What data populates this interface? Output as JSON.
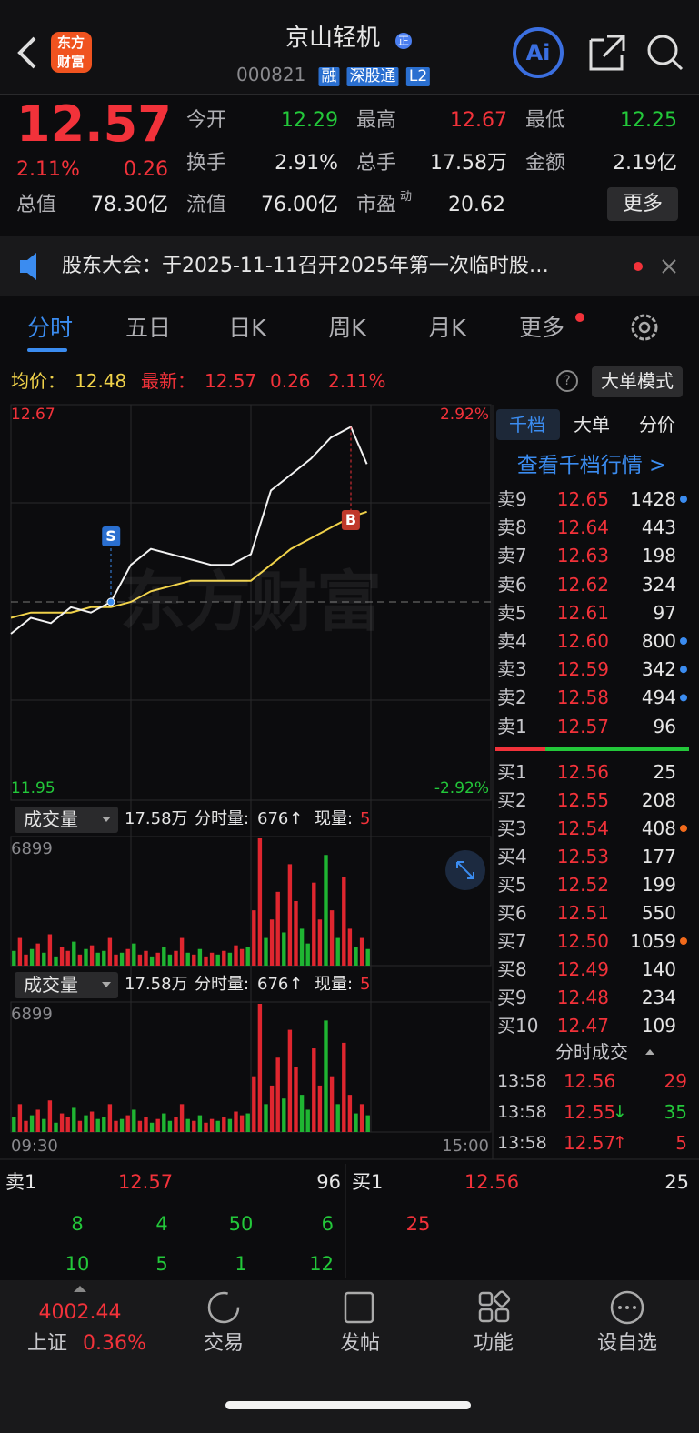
{
  "header": {
    "logo": [
      "东方",
      "财富"
    ],
    "name": "京山轻机",
    "badge": "正",
    "code": "000821",
    "tags": [
      "融",
      "深股通",
      "L2"
    ],
    "ai": "Ai"
  },
  "quote": {
    "price": "12.57",
    "pct": "2.11%",
    "change": "0.26",
    "fields": [
      {
        "label": "今开",
        "value": "12.29",
        "color": "#23c83a"
      },
      {
        "label": "最高",
        "value": "12.67",
        "color": "#f2323a"
      },
      {
        "label": "最低",
        "value": "12.25",
        "color": "#23c83a"
      },
      {
        "label": "换手",
        "value": "2.91%"
      },
      {
        "label": "总手",
        "value": "17.58万"
      },
      {
        "label": "金额",
        "value": "2.19亿"
      },
      {
        "label": "总值",
        "value": "78.30亿"
      },
      {
        "label": "流值",
        "value": "76.00亿"
      },
      {
        "label": "市盈",
        "sup": "动",
        "value": "20.62"
      }
    ],
    "more": "更多"
  },
  "notice": "股东大会：于2025-11-11召开2025年第一次临时股…",
  "tabs": [
    "分时",
    "五日",
    "日K",
    "周K",
    "月K",
    "更多"
  ],
  "infobar": {
    "avg_label": "均价：",
    "avg": "12.48",
    "latest_label": "最新：",
    "latest": "12.57",
    "change": "0.26",
    "pct": "2.11%",
    "help": "?",
    "mode": "大单模式"
  },
  "intraday": {
    "x": [
      "09:30",
      "09:40",
      "09:50",
      "10:00",
      "10:10",
      "10:20",
      "10:30",
      "10:40",
      "10:50",
      "11:00",
      "11:10",
      "11:20",
      "11:30",
      "13:10",
      "13:20",
      "13:30",
      "13:40",
      "13:50",
      "13:58"
    ],
    "price": [
      12.25,
      12.28,
      12.27,
      12.3,
      12.29,
      12.31,
      12.38,
      12.41,
      12.4,
      12.39,
      12.38,
      12.38,
      12.4,
      12.52,
      12.55,
      12.58,
      12.62,
      12.64,
      12.57
    ],
    "avg": [
      12.28,
      12.29,
      12.29,
      12.29,
      12.3,
      12.3,
      12.31,
      12.33,
      12.34,
      12.35,
      12.35,
      12.35,
      12.35,
      12.38,
      12.41,
      12.43,
      12.45,
      12.47,
      12.48
    ],
    "ylim": [
      11.95,
      12.67
    ],
    "yticks": [
      11.95,
      12.67
    ],
    "y2lim": [
      -2.92,
      2.92
    ],
    "y2ticks": [
      {
        "value": -2.92,
        "label": "-2.92%"
      },
      {
        "value": 2.92,
        "label": "2.92%"
      }
    ],
    "xticks": [
      "09:30",
      "15:00"
    ],
    "ref_line": 12.31,
    "markers": [
      {
        "label": "S",
        "x": "10:20",
        "value": 12.31
      },
      {
        "label": "B",
        "x": "13:50",
        "value": 12.47
      }
    ],
    "watermark": "东方财富"
  },
  "volume": {
    "label": "成交量",
    "total": "17.58万",
    "minute_label": "分时量:",
    "minute": "676",
    "arrow": "↑",
    "now_label": "现量:",
    "now": "5",
    "ylim": [
      0,
      6899
    ],
    "yticks": [
      6899
    ],
    "values": [
      800,
      1500,
      600,
      900,
      1200,
      700,
      1700,
      500,
      1000,
      800,
      1300,
      600,
      900,
      1100,
      700,
      800,
      1500,
      600,
      700,
      900,
      1200,
      600,
      800,
      500,
      700,
      1000,
      600,
      800,
      1500,
      700,
      600,
      900,
      500,
      700,
      600,
      800,
      700,
      1100,
      900,
      1000,
      3000,
      6899,
      1500,
      2500,
      4000,
      1800,
      5500,
      3500,
      2000,
      1200,
      4500,
      2500,
      6000,
      3000,
      1500,
      4800,
      2000,
      1000,
      1500,
      900
    ],
    "up": [
      false,
      true,
      true,
      false,
      true,
      false,
      true,
      false,
      true,
      true,
      false,
      true,
      false,
      true,
      false,
      false,
      true,
      true,
      false,
      true,
      false,
      true,
      true,
      false,
      true,
      false,
      false,
      true,
      true,
      false,
      true,
      false,
      true,
      true,
      false,
      true,
      false,
      true,
      true,
      false,
      true,
      true,
      false,
      true,
      true,
      false,
      true,
      true,
      false,
      false,
      true,
      true,
      false,
      true,
      false,
      true,
      true,
      false,
      true,
      false
    ]
  },
  "orderbook": {
    "tabs": [
      "千档",
      "大单",
      "分价"
    ],
    "link": "查看千档行情 >",
    "asks": [
      {
        "level": "卖9",
        "price": "12.65",
        "qty": "1428",
        "dot": "#3b8cf0"
      },
      {
        "level": "卖8",
        "price": "12.64",
        "qty": "443"
      },
      {
        "level": "卖7",
        "price": "12.63",
        "qty": "198"
      },
      {
        "level": "卖6",
        "price": "12.62",
        "qty": "324"
      },
      {
        "level": "卖5",
        "price": "12.61",
        "qty": "97"
      },
      {
        "level": "卖4",
        "price": "12.60",
        "qty": "800",
        "dot": "#3b8cf0"
      },
      {
        "level": "卖3",
        "price": "12.59",
        "qty": "342",
        "dot": "#3b8cf0"
      },
      {
        "level": "卖2",
        "price": "12.58",
        "qty": "494",
        "dot": "#3b8cf0"
      },
      {
        "level": "卖1",
        "price": "12.57",
        "qty": "96"
      }
    ],
    "bids": [
      {
        "level": "买1",
        "price": "12.56",
        "qty": "25"
      },
      {
        "level": "买2",
        "price": "12.55",
        "qty": "208"
      },
      {
        "level": "买3",
        "price": "12.54",
        "qty": "408",
        "dot": "#f26a1b"
      },
      {
        "level": "买4",
        "price": "12.53",
        "qty": "177"
      },
      {
        "level": "买5",
        "price": "12.52",
        "qty": "199"
      },
      {
        "level": "买6",
        "price": "12.51",
        "qty": "550"
      },
      {
        "level": "买7",
        "price": "12.50",
        "qty": "1059",
        "dot": "#f26a1b"
      },
      {
        "level": "买8",
        "price": "12.49",
        "qty": "140"
      },
      {
        "level": "买9",
        "price": "12.48",
        "qty": "234"
      },
      {
        "level": "买10",
        "price": "12.47",
        "qty": "109"
      }
    ],
    "trades_title": "分时成交",
    "trades": [
      {
        "time": "13:58",
        "price": "12.56",
        "qty": "29",
        "color": "#f2323a"
      },
      {
        "time": "13:58",
        "price": "12.55",
        "arrow": "↓",
        "qty": "35",
        "color": "#23c83a"
      },
      {
        "time": "13:58",
        "price": "12.57",
        "arrow": "↑",
        "qty": "5",
        "color": "#f2323a"
      }
    ]
  },
  "depth": {
    "ask": {
      "level": "卖1",
      "price": "12.57",
      "qty": "96"
    },
    "bid": {
      "level": "买1",
      "price": "12.56",
      "qty": "25"
    },
    "ask_rows": [
      [
        "8",
        "4",
        "50",
        "6"
      ],
      [
        "10",
        "5",
        "1",
        "12"
      ]
    ],
    "bid_rows": [
      [
        "25"
      ]
    ]
  },
  "nav": {
    "index_value": "4002.44",
    "index_name": "上证",
    "index_pct": "0.36%",
    "items": [
      "交易",
      "发帖",
      "功能",
      "设自选"
    ]
  }
}
